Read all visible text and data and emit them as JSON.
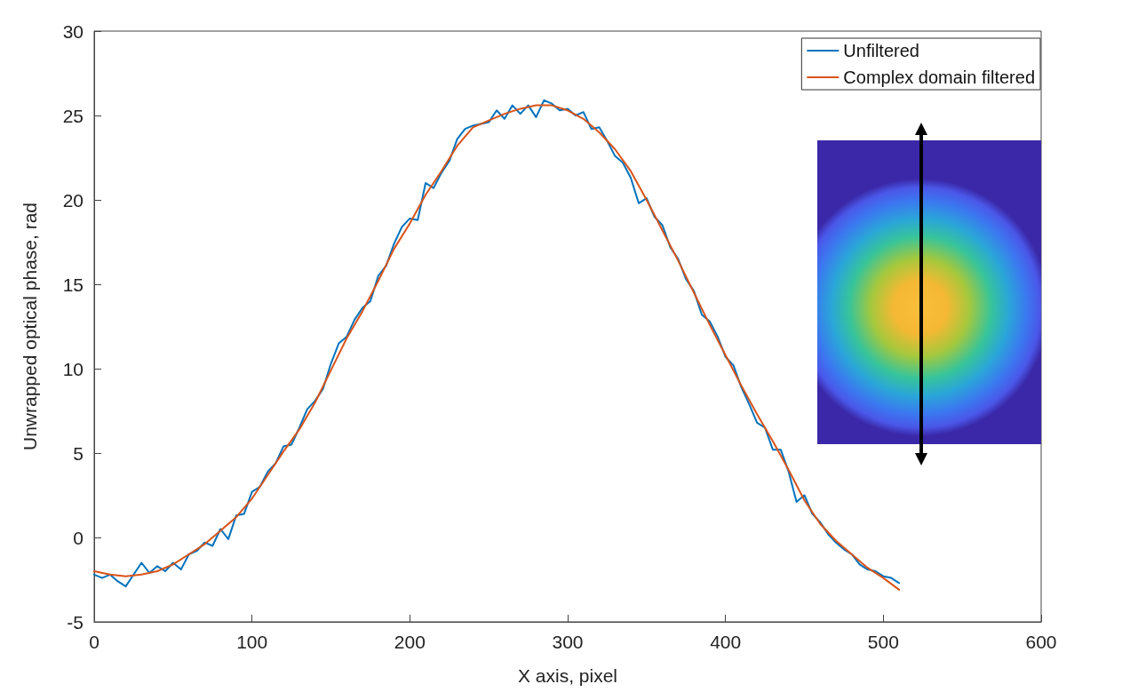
{
  "chart_data": {
    "type": "line",
    "xlabel": "X axis, pixel",
    "ylabel": "Unwrapped optical phase, rad",
    "xlim": [
      0,
      600
    ],
    "xticks": [
      0,
      100,
      200,
      300,
      400,
      500,
      600
    ],
    "ylim": [
      -5,
      30
    ],
    "yticks": [
      -5,
      0,
      5,
      10,
      15,
      20,
      25,
      30
    ],
    "grid": false,
    "legend": "top right",
    "marker": "none",
    "line_style": "solid",
    "series": [
      {
        "name": "Unfiltered",
        "color": "#0072bd",
        "x": [
          0,
          5,
          10,
          15,
          20,
          25,
          30,
          35,
          40,
          45,
          50,
          55,
          60,
          65,
          70,
          75,
          80,
          85,
          90,
          95,
          100,
          105,
          110,
          115,
          120,
          125,
          130,
          135,
          140,
          145,
          150,
          155,
          160,
          165,
          170,
          175,
          180,
          185,
          190,
          195,
          200,
          205,
          210,
          215,
          220,
          225,
          230,
          235,
          240,
          245,
          250,
          255,
          260,
          265,
          270,
          275,
          280,
          285,
          290,
          295,
          300,
          305,
          310,
          315,
          320,
          325,
          330,
          335,
          340,
          345,
          350,
          355,
          360,
          365,
          370,
          375,
          380,
          385,
          390,
          395,
          400,
          405,
          410,
          415,
          420,
          425,
          430,
          435,
          440,
          445,
          450,
          455,
          460,
          465,
          470,
          475,
          480,
          485,
          490,
          495,
          500,
          505,
          510
        ],
        "values": [
          -2.2,
          -2.4,
          -2.2,
          -2.6,
          -2.9,
          -2.2,
          -1.5,
          -2.1,
          -1.7,
          -2.0,
          -1.5,
          -1.9,
          -1.0,
          -0.8,
          -0.3,
          -0.5,
          0.5,
          -0.1,
          1.3,
          1.4,
          2.7,
          3.0,
          3.9,
          4.4,
          5.4,
          5.5,
          6.5,
          7.6,
          8.1,
          8.8,
          10.3,
          11.5,
          11.9,
          12.9,
          13.6,
          14.0,
          15.5,
          16.1,
          17.4,
          18.4,
          18.9,
          18.8,
          21.0,
          20.7,
          21.6,
          22.3,
          23.6,
          24.2,
          24.4,
          24.5,
          24.6,
          25.3,
          24.8,
          25.6,
          25.1,
          25.6,
          24.9,
          25.9,
          25.7,
          25.3,
          25.4,
          25.0,
          25.2,
          24.2,
          24.3,
          23.5,
          22.6,
          22.2,
          21.3,
          19.8,
          20.1,
          19.0,
          18.5,
          17.2,
          16.5,
          15.3,
          14.6,
          13.2,
          12.8,
          11.9,
          10.7,
          10.2,
          8.9,
          7.9,
          6.8,
          6.5,
          5.2,
          5.2,
          3.9,
          2.1,
          2.5,
          1.4,
          0.9,
          0.2,
          -0.3,
          -0.7,
          -1.0,
          -1.6,
          -1.9,
          -2.0,
          -2.3,
          -2.4,
          -2.7
        ]
      },
      {
        "name": "Complex domain filtered",
        "color": "#d95319",
        "x": [
          0,
          10,
          20,
          30,
          40,
          50,
          60,
          70,
          80,
          90,
          100,
          110,
          120,
          130,
          140,
          150,
          160,
          170,
          180,
          190,
          200,
          210,
          220,
          230,
          240,
          250,
          260,
          270,
          280,
          290,
          300,
          310,
          320,
          330,
          340,
          350,
          360,
          370,
          380,
          390,
          400,
          410,
          420,
          430,
          440,
          450,
          460,
          470,
          480,
          490,
          500,
          510
        ],
        "values": [
          -2.0,
          -2.2,
          -2.3,
          -2.2,
          -2.0,
          -1.6,
          -1.0,
          -0.4,
          0.4,
          1.2,
          2.3,
          3.7,
          5.1,
          6.4,
          8.0,
          9.9,
          11.8,
          13.4,
          15.2,
          17.1,
          18.6,
          20.3,
          21.7,
          23.2,
          24.3,
          24.7,
          25.1,
          25.4,
          25.6,
          25.6,
          25.3,
          24.8,
          24.0,
          23.0,
          21.7,
          20.0,
          18.2,
          16.4,
          14.5,
          12.6,
          10.8,
          9.0,
          7.3,
          5.7,
          4.0,
          2.2,
          0.8,
          -0.2,
          -1.0,
          -1.8,
          -2.4,
          -3.1
        ]
      }
    ]
  }
}
